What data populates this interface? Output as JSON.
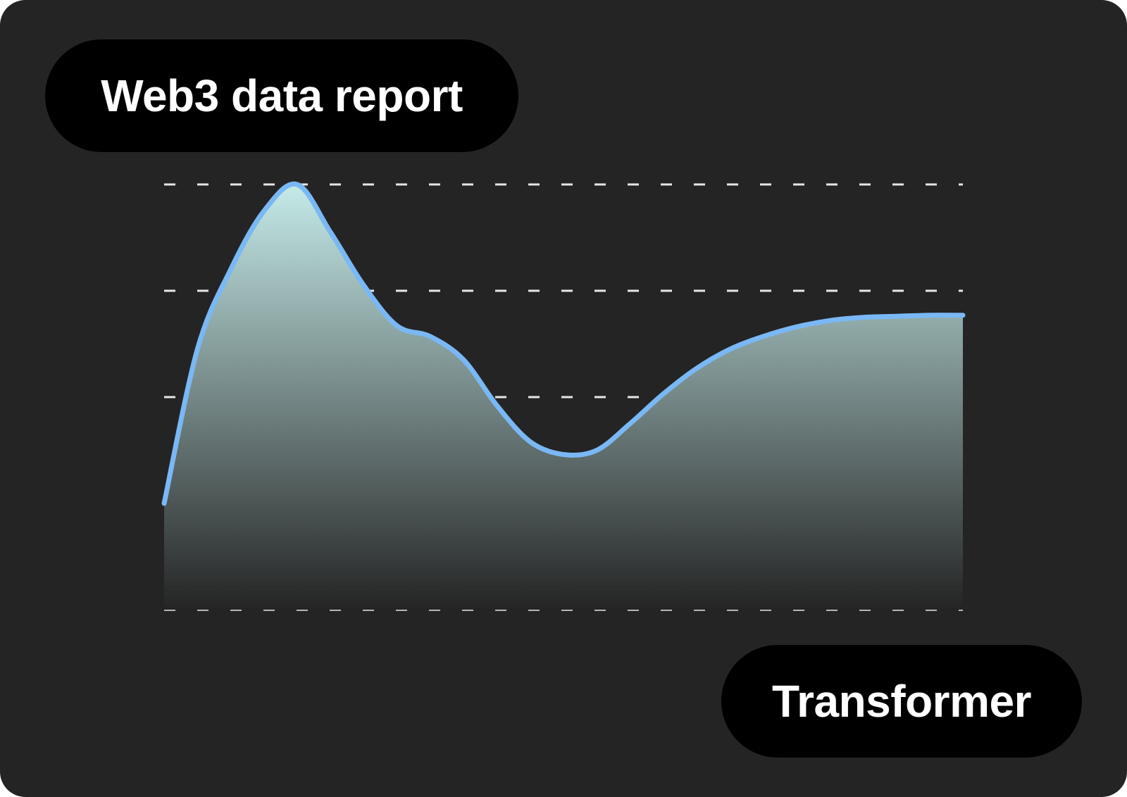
{
  "title_badge": {
    "label": "Web3 data report"
  },
  "model_badge": {
    "label": "Transformer"
  },
  "colors": {
    "background": "#242424",
    "badge": "#000000",
    "badge_text": "#ffffff",
    "line": "#7ab8f5",
    "gridline": "#e6e6e6",
    "fill_top": "#c4eae8",
    "fill_bottom": "#242424"
  },
  "chart_data": {
    "type": "area",
    "title": "",
    "xlabel": "",
    "ylabel": "",
    "grid": true,
    "gridline_style": "dashed",
    "ylim": [
      0,
      4
    ],
    "xlim": [
      0,
      12
    ],
    "x": [
      0,
      0.5,
      1,
      1.5,
      2,
      2.5,
      3,
      3.5,
      4,
      4.5,
      5,
      5.5,
      6,
      6.5,
      7,
      7.5,
      8,
      8.5,
      9,
      9.5,
      10,
      10.5,
      11,
      11.5,
      12
    ],
    "series": [
      {
        "name": "",
        "values": [
          1,
          2.45,
          3.2,
          3.75,
          4,
          3.55,
          3.05,
          2.67,
          2.57,
          2.35,
          1.92,
          1.58,
          1.46,
          1.5,
          1.75,
          2.03,
          2.27,
          2.45,
          2.57,
          2.66,
          2.72,
          2.75,
          2.76,
          2.77,
          2.77
        ]
      }
    ]
  }
}
